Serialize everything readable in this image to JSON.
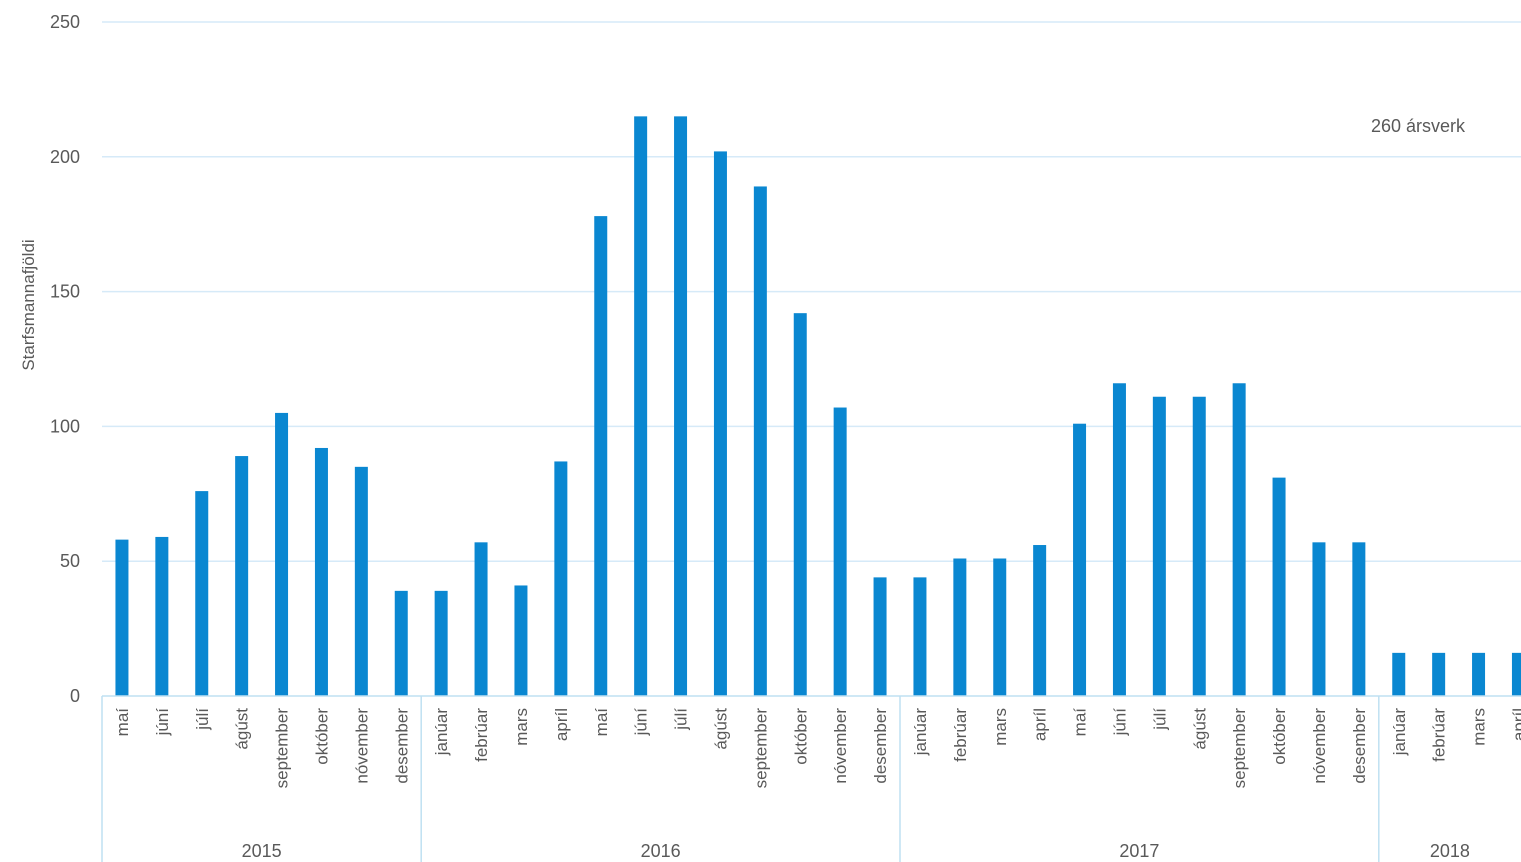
{
  "chart_data": {
    "type": "bar",
    "ylabel": "Starfsmannafjöldi",
    "ylim": [
      0,
      250
    ],
    "yticks": [
      0,
      50,
      100,
      150,
      200,
      250
    ],
    "grid": true,
    "annotation": "260 ársverk",
    "colors": {
      "bar": "#0a87d1",
      "grid": "#d6eaf8",
      "axis": "#bfe0f2",
      "text": "#595959"
    },
    "groups": [
      {
        "label": "2015",
        "categories": [
          "maí",
          "júní",
          "júlí",
          "ágúst",
          "september",
          "október",
          "nóvember",
          "desember"
        ]
      },
      {
        "label": "2016",
        "categories": [
          "janúar",
          "febrúar",
          "mars",
          "apríl",
          "maí",
          "júní",
          "júlí",
          "ágúst",
          "september",
          "október",
          "nóvember",
          "desember"
        ]
      },
      {
        "label": "2017",
        "categories": [
          "janúar",
          "febrúar",
          "mars",
          "apríl",
          "maí",
          "júní",
          "júlí",
          "ágúst",
          "september",
          "október",
          "nóvember",
          "desember"
        ]
      },
      {
        "label": "2018",
        "categories": [
          "janúar",
          "febrúar",
          "mars",
          "apríl"
        ]
      }
    ],
    "values": [
      58,
      59,
      76,
      89,
      105,
      92,
      85,
      39,
      39,
      57,
      41,
      87,
      178,
      215,
      215,
      202,
      189,
      142,
      107,
      44,
      44,
      51,
      51,
      56,
      101,
      116,
      111,
      111,
      116,
      81,
      57,
      57,
      16,
      16,
      16,
      16
    ]
  }
}
